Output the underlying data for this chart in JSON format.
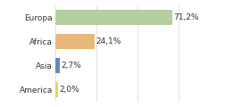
{
  "categories": [
    "Europa",
    "Africa",
    "Asia",
    "America"
  ],
  "values": [
    71.2,
    24.1,
    2.7,
    2.0
  ],
  "labels": [
    "71,2%",
    "24,1%",
    "2,7%",
    "2,0%"
  ],
  "bar_colors": [
    "#b5cfa0",
    "#e8b87a",
    "#6688bb",
    "#e8d060"
  ],
  "xlim": [
    0,
    100
  ],
  "background_color": "#ffffff",
  "bar_height": 0.6,
  "label_fontsize": 6.5,
  "tick_fontsize": 6.5,
  "grid_color": "#d8d8d8",
  "grid_xticks": [
    0,
    25,
    50,
    75,
    100
  ]
}
